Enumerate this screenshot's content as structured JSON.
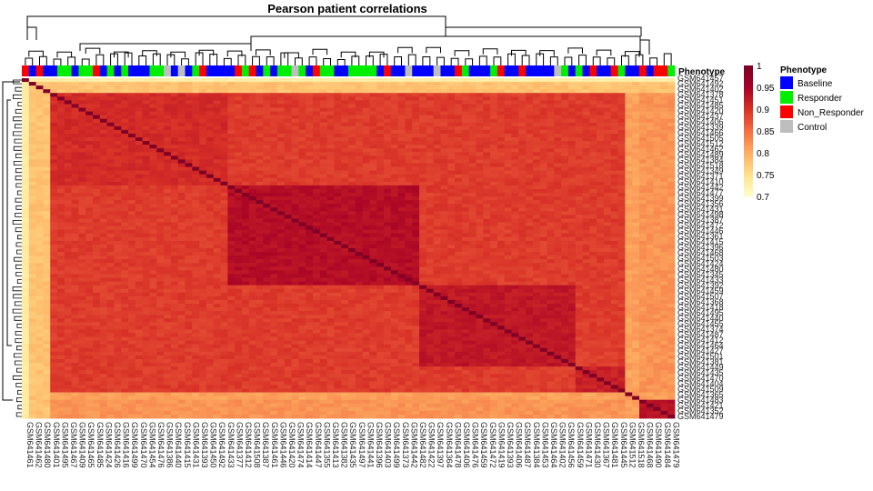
{
  "chart_data": {
    "type": "heatmap",
    "title": "Pearson patient correlations",
    "annotation_title": "Phenotype",
    "legend_title": "Phenotype",
    "legend": [
      {
        "label": "Baseline",
        "color": "#0000FF"
      },
      {
        "label": "Responder",
        "color": "#00EE00"
      },
      {
        "label": "Non_Responder",
        "color": "#FF0000"
      },
      {
        "label": "Control",
        "color": "#BEBEBE"
      }
    ],
    "colorbar": {
      "range": [
        0.7,
        1.0
      ],
      "ticks": [
        "1",
        "0.95",
        "0.9",
        "0.85",
        "0.8",
        "0.75",
        "0.7"
      ],
      "colors": [
        "#FFFFCC",
        "#FEE08B",
        "#FDAE61",
        "#F46D43",
        "#D73027",
        "#A50026",
        "#800026"
      ]
    },
    "row_labels": [
      "GSM641457",
      "GSM641492",
      "GSM641402",
      "GSM641378",
      "GSM641451",
      "GSM641485",
      "GSM641420",
      "GSM641437",
      "GSM641406",
      "GSM641339",
      "GSM641466",
      "GSM641505",
      "GSM641512",
      "GSM641462",
      "GSM641489",
      "GSM641384",
      "GSM641518",
      "GSM641349",
      "GSM641371",
      "GSM641410",
      "GSM641442",
      "GSM641477",
      "GSM641399",
      "GSM641356",
      "GSM641431",
      "GSM641498",
      "GSM641387",
      "GSM641472",
      "GSM641446",
      "GSM641361",
      "GSM641415",
      "GSM641396",
      "GSM641468",
      "GSM641503",
      "GSM641424",
      "GSM641480",
      "GSM641345",
      "GSM641433",
      "GSM641392",
      "GSM641459",
      "GSM641507",
      "GSM641368",
      "GSM641418",
      "GSM641495",
      "GSM641440",
      "GSM641455",
      "GSM641374",
      "GSM641487",
      "GSM641412",
      "GSM641464",
      "GSM641427",
      "GSM641501",
      "GSM641381",
      "GSM641449",
      "GSM641435",
      "GSM641470",
      "GSM641404",
      "GSM641509",
      "GSM641365",
      "GSM641483",
      "GSM641421",
      "GSM641352",
      "GSM641479"
    ],
    "col_labels": [
      "GSM641461",
      "GSM641462",
      "GSM641480",
      "GSM641401",
      "GSM641495",
      "GSM641467",
      "GSM641409",
      "GSM641465",
      "GSM641485",
      "GSM641424",
      "GSM641426",
      "GSM641416",
      "GSM641499",
      "GSM641470",
      "GSM641454",
      "GSM641476",
      "GSM641386",
      "GSM641440",
      "GSM641415",
      "GSM641431",
      "GSM641393",
      "GSM641450",
      "GSM641492",
      "GSM641433",
      "GSM641377",
      "GSM641412",
      "GSM641508",
      "GSM641387",
      "GSM641461",
      "GSM641446",
      "GSM641420",
      "GSM641474",
      "GSM641414",
      "GSM641447",
      "GSM641355",
      "GSM641413",
      "GSM641382",
      "GSM641435",
      "GSM641497",
      "GSM641441",
      "GSM641396",
      "GSM641403",
      "GSM641499",
      "GSM641373",
      "GSM641442",
      "GSM641482",
      "GSM641422",
      "GSM641397",
      "GSM641364",
      "GSM641478",
      "GSM641406",
      "GSM641476",
      "GSM641459",
      "GSM641472",
      "GSM641419",
      "GSM641393",
      "GSM641406",
      "GSM641487",
      "GSM641384",
      "GSM641453",
      "GSM641464",
      "GSM641402",
      "GSM641456",
      "GSM641459",
      "GSM641471",
      "GSM641430",
      "GSM641367",
      "GSM641481",
      "GSM641445",
      "GSM641512",
      "GSM641518",
      "GSM641468",
      "GSM641490",
      "GSM641484",
      "GSM641479"
    ]
  }
}
